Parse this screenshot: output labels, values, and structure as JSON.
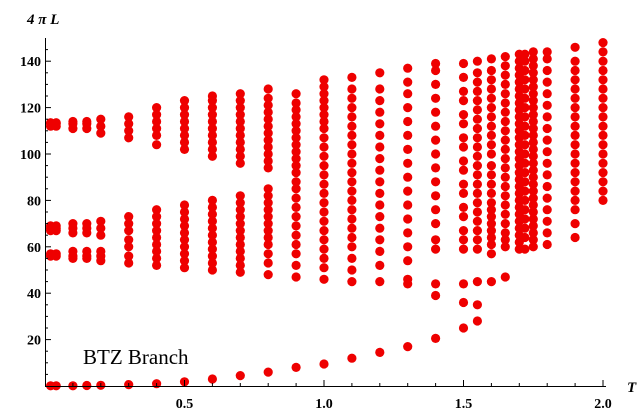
{
  "chart_data": {
    "type": "scatter",
    "xlabel": "T",
    "ylabel": "4 π L",
    "annotation": "BTZ Branch",
    "xlim": [
      0,
      2.0
    ],
    "ylim": [
      0,
      150
    ],
    "xticks": [
      0.5,
      1.0,
      1.5,
      2.0
    ],
    "xtick_labels": [
      "0.5",
      "1.0",
      "1.5",
      "2.0"
    ],
    "yticks": [
      20,
      40,
      60,
      80,
      100,
      120,
      140
    ],
    "ytick_labels": [
      "20",
      "40",
      "60",
      "80",
      "100",
      "120",
      "140"
    ],
    "marker_color": "#ee0000",
    "columns": [
      {
        "T": 0.02,
        "L": [
          0.1,
          56,
          57,
          67,
          68,
          69,
          112,
          113,
          113.5
        ]
      },
      {
        "T": 0.04,
        "L": [
          0.1,
          56,
          57,
          67,
          68,
          69,
          112,
          113,
          113.5
        ]
      },
      {
        "T": 0.1,
        "L": [
          0.1,
          55,
          56,
          58,
          66,
          68,
          70,
          111,
          113,
          114
        ]
      },
      {
        "T": 0.15,
        "L": [
          0.2,
          55,
          56,
          58,
          66,
          68,
          70,
          111,
          113,
          114
        ]
      },
      {
        "T": 0.2,
        "L": [
          0.3,
          54,
          56,
          58,
          65,
          68,
          71,
          109,
          112,
          115
        ]
      },
      {
        "T": 0.3,
        "L": [
          0.6,
          53,
          56,
          60,
          63,
          67,
          70,
          73,
          107,
          110,
          113,
          116
        ]
      },
      {
        "T": 0.4,
        "L": [
          1.0,
          52,
          55,
          58,
          61,
          64,
          67,
          70,
          73,
          76,
          104,
          108,
          111,
          114,
          117,
          120
        ]
      },
      {
        "T": 0.5,
        "L": [
          1.8,
          51,
          54,
          57,
          60,
          63,
          66,
          69,
          72,
          75,
          78,
          102,
          105,
          108,
          111,
          114,
          117,
          120,
          123
        ]
      },
      {
        "T": 0.6,
        "L": [
          3.0,
          50,
          53,
          56,
          59,
          62,
          65,
          68,
          71,
          74,
          77,
          80,
          99,
          102,
          105,
          108,
          111,
          114,
          117,
          120,
          123,
          125
        ]
      },
      {
        "T": 0.7,
        "L": [
          4.5,
          49,
          52,
          55,
          58,
          61,
          64,
          67,
          70,
          73,
          76,
          79,
          82,
          96,
          99,
          102,
          105,
          108,
          111,
          114,
          117,
          120,
          123,
          126
        ]
      },
      {
        "T": 0.8,
        "L": [
          6.0,
          48,
          53,
          57,
          61,
          64,
          67,
          70,
          73,
          76,
          79,
          82,
          85,
          94,
          97,
          100,
          103,
          106,
          109,
          112,
          115,
          118,
          121,
          124,
          128
        ]
      },
      {
        "T": 0.9,
        "L": [
          8.0,
          47,
          52,
          57,
          61,
          65,
          69,
          73,
          77,
          81,
          85,
          88,
          92,
          95,
          98,
          101,
          104,
          107,
          110,
          113,
          116,
          119,
          122,
          126
        ]
      },
      {
        "T": 1.0,
        "L": [
          9.5,
          46,
          51,
          55,
          59,
          63,
          67,
          71,
          75,
          79,
          83,
          87,
          91,
          95,
          99,
          103,
          107,
          111,
          114,
          117,
          120,
          123,
          126,
          129,
          132
        ]
      },
      {
        "T": 1.1,
        "L": [
          12,
          45,
          50,
          55,
          60,
          64,
          68,
          72,
          76,
          80,
          84,
          88,
          92,
          96,
          100,
          104,
          108,
          112,
          116,
          120,
          124,
          128,
          133
        ]
      },
      {
        "T": 1.2,
        "L": [
          14.5,
          45,
          52,
          58,
          63,
          68,
          73,
          78,
          83,
          88,
          93,
          98,
          103,
          108,
          113,
          118,
          123,
          128,
          135
        ]
      },
      {
        "T": 1.3,
        "L": [
          17,
          44,
          46,
          54,
          60,
          66,
          72,
          78,
          84,
          90,
          96,
          102,
          108,
          114,
          120,
          126,
          131,
          137
        ]
      },
      {
        "T": 1.4,
        "L": [
          20.5,
          39,
          44,
          59,
          63,
          70,
          76,
          82,
          88,
          94,
          100,
          106,
          112,
          118,
          124,
          130,
          136,
          139
        ]
      },
      {
        "T": 1.5,
        "L": [
          25,
          36,
          44,
          59,
          63,
          67,
          73,
          77,
          83,
          87,
          93,
          97,
          103,
          107,
          113,
          117,
          123,
          127,
          133,
          139
        ]
      },
      {
        "T": 1.55,
        "L": [
          28,
          35,
          45,
          59,
          63,
          67,
          71,
          75,
          79,
          83,
          87,
          91,
          95,
          99,
          103,
          107,
          111,
          115,
          119,
          123,
          127,
          131,
          135,
          140
        ]
      },
      {
        "T": 1.6,
        "L": [
          45,
          57,
          61,
          64,
          67,
          70,
          73,
          76,
          79,
          83,
          87,
          91,
          95,
          100,
          104,
          108,
          112,
          116,
          120,
          124,
          128,
          132,
          136,
          141
        ]
      },
      {
        "T": 1.65,
        "L": [
          47,
          60,
          63,
          66,
          70,
          74,
          78,
          82,
          86,
          90,
          94,
          98,
          102,
          106,
          110,
          114,
          118,
          122,
          126,
          130,
          134,
          138,
          142
        ]
      },
      {
        "T": 1.7,
        "L": [
          59,
          62,
          65,
          68,
          71,
          74,
          77,
          80,
          83,
          86,
          89,
          92,
          95,
          98,
          101,
          104,
          107,
          110,
          113,
          116,
          119,
          122,
          125,
          128,
          131,
          134,
          137,
          140,
          143
        ]
      },
      {
        "T": 1.72,
        "L": [
          59,
          64,
          68,
          72,
          76,
          80,
          84,
          88,
          92,
          96,
          100,
          104,
          108,
          112,
          116,
          120,
          124,
          128,
          132,
          136,
          140,
          143
        ]
      },
      {
        "T": 1.75,
        "L": [
          60,
          63,
          66,
          69,
          72,
          75,
          78,
          81,
          84,
          87,
          90,
          93,
          96,
          99,
          102,
          105,
          108,
          111,
          114,
          117,
          120,
          123,
          126,
          129,
          132,
          135,
          138,
          141,
          144
        ]
      },
      {
        "T": 1.8,
        "L": [
          61,
          66,
          71,
          76,
          81,
          86,
          91,
          96,
          101,
          106,
          111,
          116,
          121,
          126,
          131,
          136,
          141,
          144
        ]
      },
      {
        "T": 1.9,
        "L": [
          64,
          70,
          76,
          80,
          84,
          88,
          92,
          96,
          100,
          104,
          108,
          112,
          116,
          120,
          124,
          128,
          132,
          136,
          140,
          146
        ]
      },
      {
        "T": 2.0,
        "L": [
          80,
          84,
          88,
          92,
          96,
          100,
          104,
          108,
          112,
          116,
          120,
          124,
          128,
          132,
          136,
          140,
          144,
          148
        ]
      }
    ]
  }
}
